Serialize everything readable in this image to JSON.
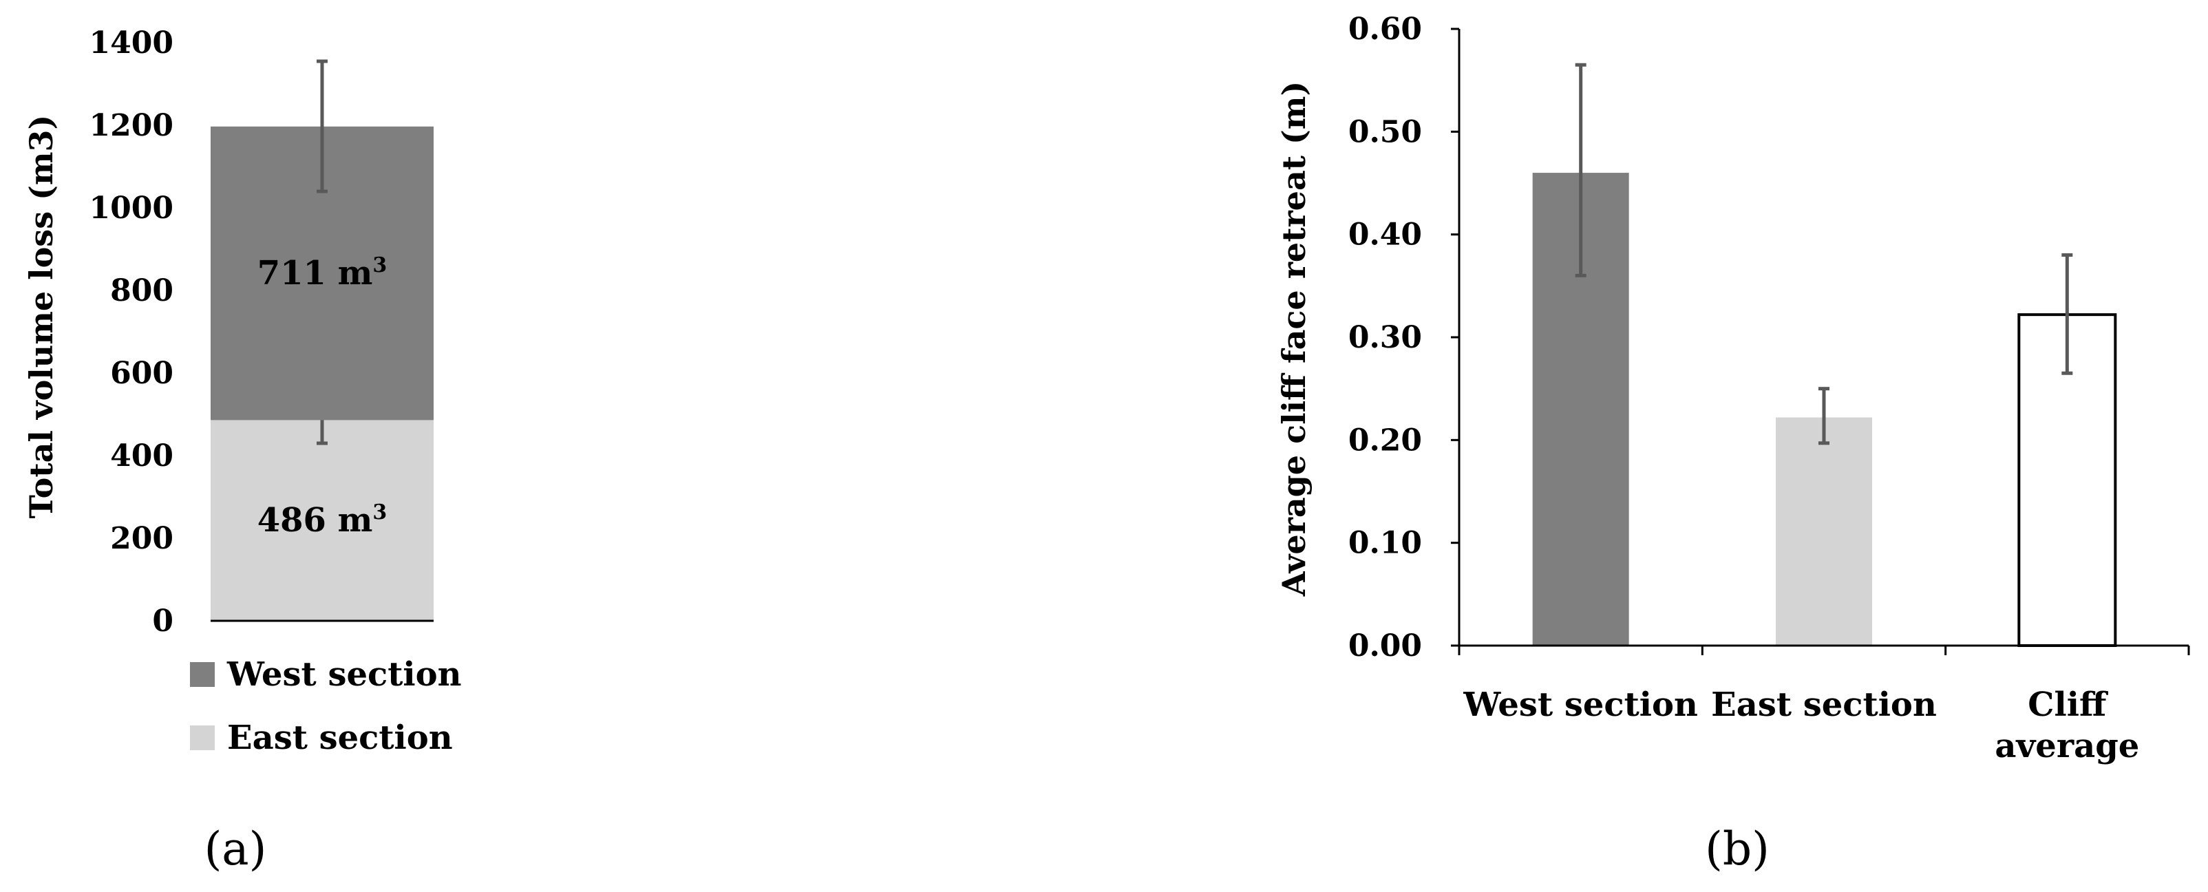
{
  "colors": {
    "west": "#7f7f7f",
    "east": "#d4d4d4",
    "average": "#ffffff",
    "error": "#595959"
  },
  "chart_data": [
    {
      "panel_label": "(a)",
      "type": "bar",
      "stacked": true,
      "ylabel": "Total volume loss (m3)",
      "ylim": [
        0,
        1400
      ],
      "yticks": [
        "0",
        "200",
        "400",
        "600",
        "800",
        "1000",
        "1200",
        "1400"
      ],
      "legend_position": "bottom",
      "series": [
        {
          "name": "East section",
          "value": 486,
          "error_low": 430,
          "error_high": 545,
          "label": "486 m",
          "label_sup": "3"
        },
        {
          "name": "West section",
          "value": 711,
          "error_low": 1040,
          "error_high": 1355,
          "label": "711 m",
          "label_sup": "3"
        }
      ],
      "legend": [
        "West section",
        "East section"
      ]
    },
    {
      "panel_label": "(b)",
      "type": "bar",
      "ylabel": "Average cliff face retreat (m)",
      "ylim": [
        0,
        0.6
      ],
      "yticks": [
        "0.00",
        "0.10",
        "0.20",
        "0.30",
        "0.40",
        "0.50",
        "0.60"
      ],
      "categories": [
        {
          "lines": [
            "West section"
          ],
          "value": 0.46,
          "error_low": 0.36,
          "error_high": 0.565
        },
        {
          "lines": [
            "East section"
          ],
          "value": 0.222,
          "error_low": 0.197,
          "error_high": 0.25
        },
        {
          "lines": [
            "Cliff",
            "average"
          ],
          "value": 0.322,
          "error_low": 0.265,
          "error_high": 0.38
        }
      ]
    }
  ]
}
